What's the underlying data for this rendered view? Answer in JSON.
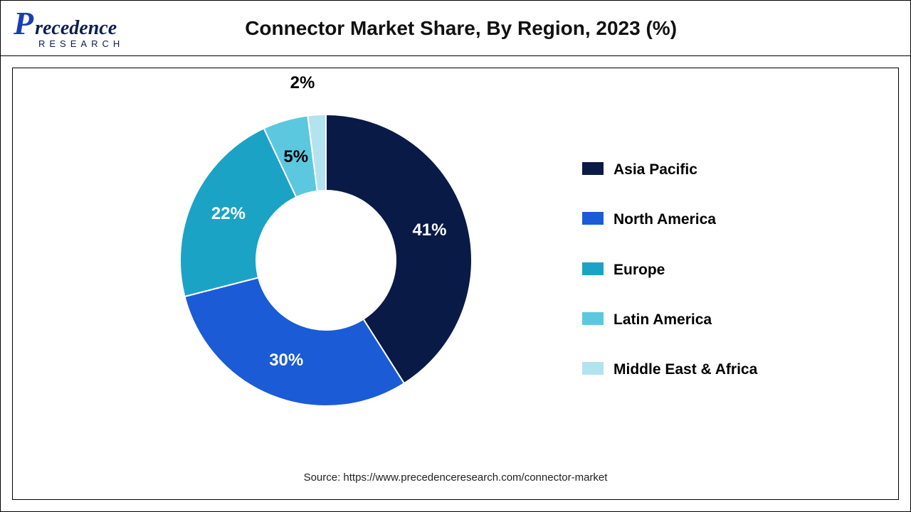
{
  "brand": {
    "logo_main_initial": "P",
    "logo_main_rest": "recedence",
    "logo_sub": "RESEARCH",
    "logo_initial_color": "#1a3fb3",
    "logo_text_color": "#0b1f4d"
  },
  "chart": {
    "type": "donut",
    "title": "Connector Market Share, By Region, 2023 (%)",
    "title_fontsize": 28,
    "source": "Source: https://www.precedenceresearch.com/connector-market",
    "background_color": "#ffffff",
    "outer_radius": 205,
    "inner_radius": 98,
    "start_angle_deg": 90,
    "direction": "clockwise",
    "label_fontsize": 24,
    "label_color_light": "#ffffff",
    "label_color_dark": "#000000",
    "slice_gap_color": "#ffffff",
    "series": [
      {
        "label": "Asia Pacific",
        "value": 41,
        "display": "41%",
        "color": "#0a1a47",
        "label_color": "#ffffff"
      },
      {
        "label": "North America",
        "value": 30,
        "display": "30%",
        "color": "#1b5bd6",
        "label_color": "#ffffff"
      },
      {
        "label": "Europe",
        "value": 22,
        "display": "22%",
        "color": "#1ba3c6",
        "label_color": "#ffffff"
      },
      {
        "label": "Latin America",
        "value": 5,
        "display": "5%",
        "color": "#5bc8e0",
        "label_color": "#000000"
      },
      {
        "label": "Middle East & Africa",
        "value": 2,
        "display": "2%",
        "color": "#b3e3ee",
        "label_color": "#000000",
        "external_label": true
      }
    ],
    "legend": {
      "position": "right",
      "fontsize": 21,
      "fontweight": 700,
      "swatch_width": 30,
      "swatch_height": 18
    }
  }
}
